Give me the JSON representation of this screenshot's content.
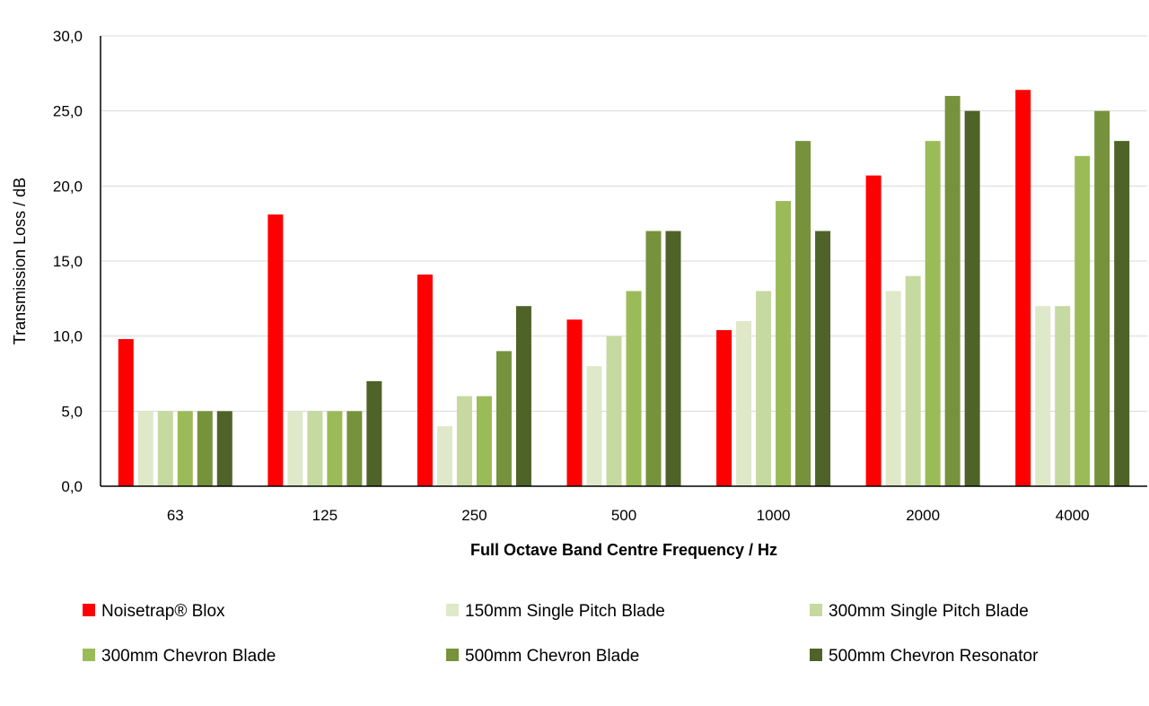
{
  "chart_data": {
    "type": "bar",
    "categories": [
      "63",
      "125",
      "250",
      "500",
      "1000",
      "2000",
      "4000"
    ],
    "series": [
      {
        "name": "Noisetrap® Blox",
        "color": "#ff0000",
        "values": [
          9.8,
          18.1,
          14.1,
          11.1,
          10.4,
          20.7,
          26.4
        ]
      },
      {
        "name": "150mm Single Pitch Blade",
        "color": "#dfe8c9",
        "values": [
          5.0,
          5.0,
          4.0,
          8.0,
          11.0,
          13.0,
          12.0
        ]
      },
      {
        "name": "300mm Single Pitch Blade",
        "color": "#c6d9a0",
        "values": [
          5.0,
          5.0,
          6.0,
          10.0,
          13.0,
          14.0,
          12.0
        ]
      },
      {
        "name": "300mm Chevron Blade",
        "color": "#9bbb59",
        "values": [
          5.0,
          5.0,
          6.0,
          13.0,
          19.0,
          23.0,
          22.0
        ]
      },
      {
        "name": "500mm Chevron Blade",
        "color": "#76923c",
        "values": [
          5.0,
          5.0,
          9.0,
          17.0,
          23.0,
          26.0,
          25.0
        ]
      },
      {
        "name": "500mm Chevron Resonator",
        "color": "#4f6228",
        "values": [
          5.0,
          7.0,
          12.0,
          17.0,
          17.0,
          25.0,
          23.0
        ]
      }
    ],
    "yticks": [
      "0,0",
      "5,0",
      "10,0",
      "15,0",
      "20,0",
      "25,0",
      "30,0"
    ],
    "ylim": [
      0,
      30
    ],
    "xlabel": "Full Octave Band Centre Frequency / Hz",
    "ylabel": "Transmission Loss / dB",
    "grid": true,
    "legend_position": "bottom",
    "gridline_color": "#d9d9d9"
  }
}
